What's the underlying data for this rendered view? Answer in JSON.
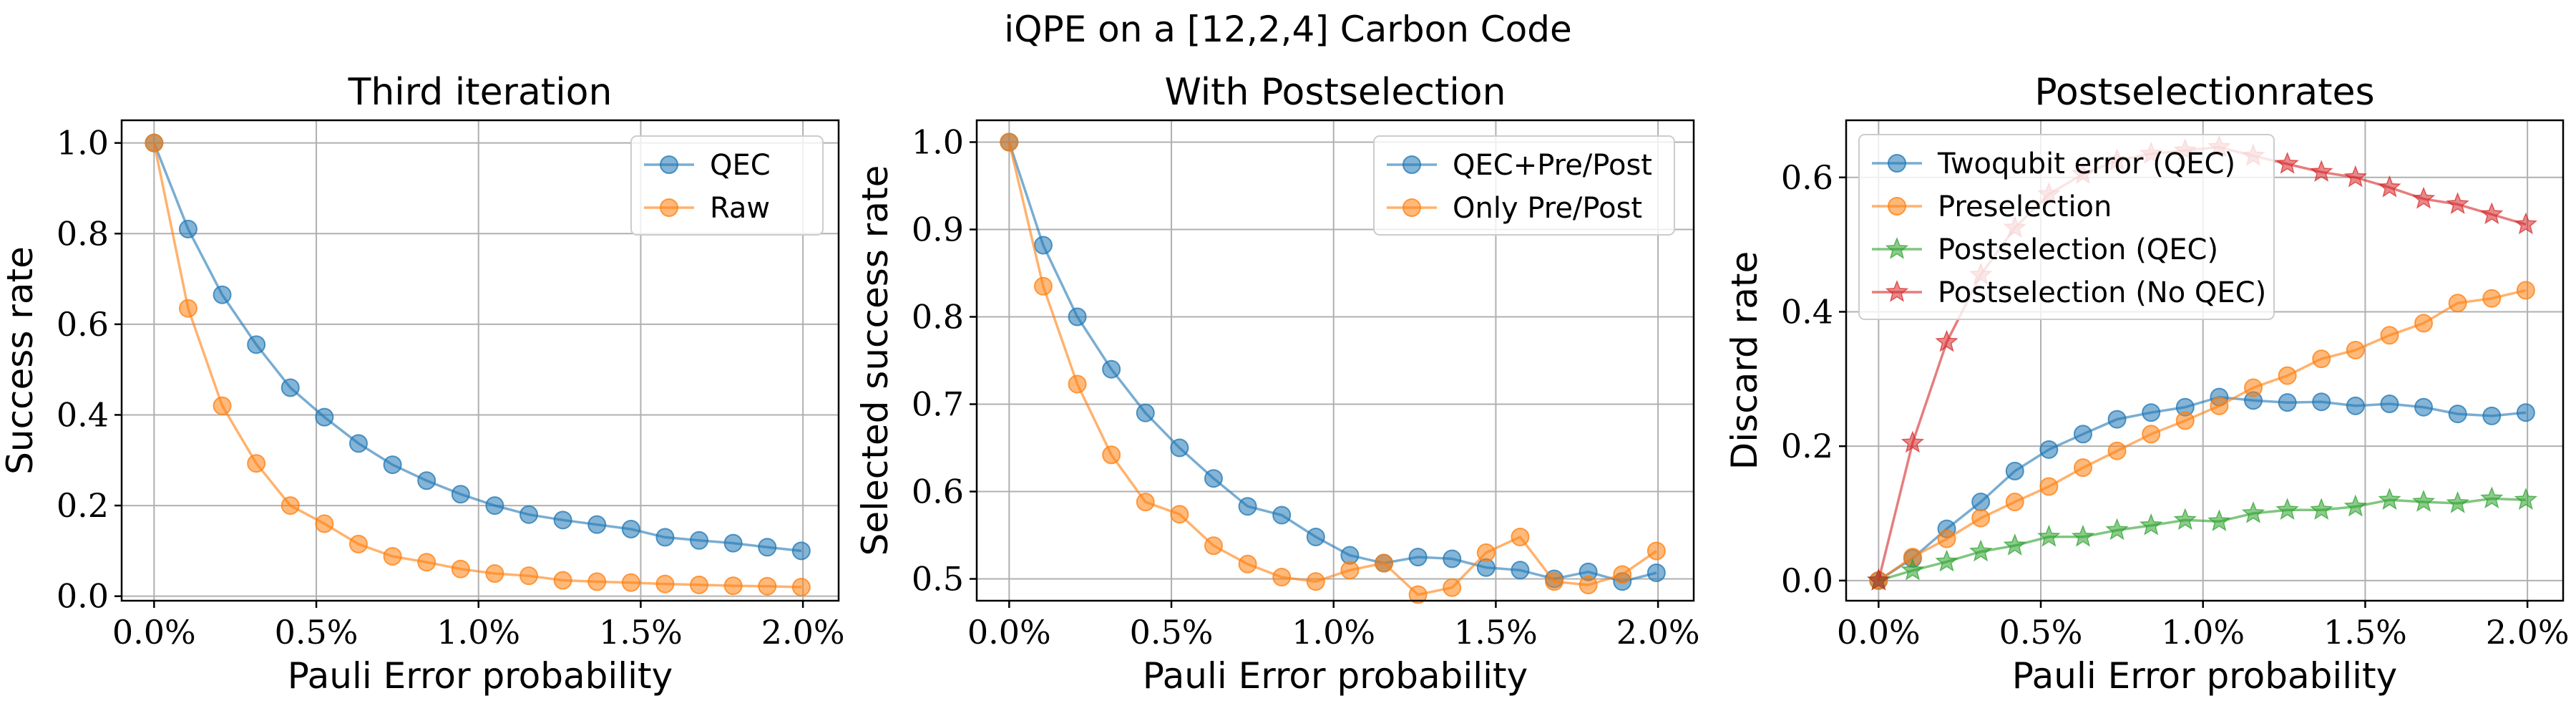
{
  "figure_title": "iQPE on a [12,2,4] Carbon Code",
  "colors": {
    "blue": "#1f77b4",
    "orange": "#ff7f0e",
    "green": "#2ca02c",
    "red": "#d62728"
  },
  "chart_data": [
    {
      "type": "line",
      "title": "Third iteration",
      "xlabel": "Pauli Error probability",
      "ylabel": "Success rate",
      "xlim": [
        -0.001,
        0.0211
      ],
      "ylim": [
        -0.01,
        1.05
      ],
      "xticks": [
        0.0,
        0.005,
        0.01,
        0.015,
        0.02
      ],
      "xtick_labels": [
        "0.0%",
        "0.5%",
        "1.0%",
        "1.5%",
        "2.0%"
      ],
      "yticks": [
        0.0,
        0.2,
        0.4,
        0.6,
        0.8,
        1.0
      ],
      "ytick_labels": [
        "0.0",
        "0.2",
        "0.4",
        "0.6",
        "0.8",
        "1.0"
      ],
      "grid": true,
      "legend_position": "top-right",
      "x": [
        0.0,
        0.00105,
        0.0021,
        0.00315,
        0.0042,
        0.00525,
        0.0063,
        0.00735,
        0.0084,
        0.00945,
        0.0105,
        0.01155,
        0.0126,
        0.01365,
        0.0147,
        0.01575,
        0.0168,
        0.01785,
        0.0189,
        0.01995
      ],
      "series": [
        {
          "name": "QEC",
          "color": "blue",
          "marker": "circle",
          "values": [
            1.0,
            0.81,
            0.665,
            0.555,
            0.46,
            0.395,
            0.337,
            0.29,
            0.255,
            0.225,
            0.2,
            0.18,
            0.168,
            0.158,
            0.148,
            0.13,
            0.123,
            0.117,
            0.108,
            0.1
          ]
        },
        {
          "name": "Raw",
          "color": "orange",
          "marker": "circle",
          "values": [
            1.0,
            0.635,
            0.42,
            0.293,
            0.2,
            0.16,
            0.115,
            0.088,
            0.075,
            0.06,
            0.05,
            0.045,
            0.035,
            0.032,
            0.03,
            0.027,
            0.025,
            0.023,
            0.022,
            0.02
          ]
        }
      ]
    },
    {
      "type": "line",
      "title": "With Postselection",
      "xlabel": "Pauli Error probability",
      "ylabel": "Selected success rate",
      "xlim": [
        -0.001,
        0.0211
      ],
      "ylim": [
        0.475,
        1.025
      ],
      "xticks": [
        0.0,
        0.005,
        0.01,
        0.015,
        0.02
      ],
      "xtick_labels": [
        "0.0%",
        "0.5%",
        "1.0%",
        "1.5%",
        "2.0%"
      ],
      "yticks": [
        0.5,
        0.6,
        0.7,
        0.8,
        0.9,
        1.0
      ],
      "ytick_labels": [
        "0.5",
        "0.6",
        "0.7",
        "0.8",
        "0.9",
        "1.0"
      ],
      "grid": true,
      "legend_position": "top-right",
      "x": [
        0.0,
        0.00105,
        0.0021,
        0.00315,
        0.0042,
        0.00525,
        0.0063,
        0.00735,
        0.0084,
        0.00945,
        0.0105,
        0.01155,
        0.0126,
        0.01365,
        0.0147,
        0.01575,
        0.0168,
        0.01785,
        0.0189,
        0.01995
      ],
      "series": [
        {
          "name": "QEC+Pre/Post",
          "color": "blue",
          "marker": "circle",
          "values": [
            1.0,
            0.882,
            0.8,
            0.74,
            0.69,
            0.65,
            0.615,
            0.583,
            0.573,
            0.548,
            0.527,
            0.518,
            0.525,
            0.523,
            0.513,
            0.51,
            0.5,
            0.508,
            0.497,
            0.507
          ]
        },
        {
          "name": "Only Pre/Post",
          "color": "orange",
          "marker": "circle",
          "values": [
            1.0,
            0.835,
            0.723,
            0.642,
            0.588,
            0.574,
            0.538,
            0.517,
            0.502,
            0.497,
            0.51,
            0.518,
            0.482,
            0.49,
            0.53,
            0.548,
            0.497,
            0.493,
            0.505,
            0.532
          ]
        }
      ]
    },
    {
      "type": "line",
      "title": "Postselectionrates",
      "xlabel": "Pauli Error probability",
      "ylabel": "Discard rate",
      "xlim": [
        -0.001,
        0.0211
      ],
      "ylim": [
        -0.03,
        0.685
      ],
      "xticks": [
        0.0,
        0.005,
        0.01,
        0.015,
        0.02
      ],
      "xtick_labels": [
        "0.0%",
        "0.5%",
        "1.0%",
        "1.5%",
        "2.0%"
      ],
      "yticks": [
        0.0,
        0.2,
        0.4,
        0.6
      ],
      "ytick_labels": [
        "0.0",
        "0.2",
        "0.4",
        "0.6"
      ],
      "grid": true,
      "legend_position": "top-left",
      "x": [
        0.0,
        0.00105,
        0.0021,
        0.00315,
        0.0042,
        0.00525,
        0.0063,
        0.00735,
        0.0084,
        0.00945,
        0.0105,
        0.01155,
        0.0126,
        0.01365,
        0.0147,
        0.01575,
        0.0168,
        0.01785,
        0.0189,
        0.01995
      ],
      "series": [
        {
          "name": "Twoqubit error (QEC)",
          "color": "blue",
          "marker": "circle",
          "values": [
            0.0,
            0.033,
            0.077,
            0.117,
            0.163,
            0.195,
            0.218,
            0.24,
            0.25,
            0.258,
            0.273,
            0.268,
            0.265,
            0.266,
            0.26,
            0.263,
            0.258,
            0.248,
            0.245,
            0.25
          ]
        },
        {
          "name": "Preselection",
          "color": "orange",
          "marker": "circle",
          "values": [
            0.0,
            0.035,
            0.062,
            0.093,
            0.117,
            0.14,
            0.168,
            0.193,
            0.218,
            0.238,
            0.26,
            0.287,
            0.305,
            0.33,
            0.343,
            0.365,
            0.383,
            0.413,
            0.42,
            0.432
          ]
        },
        {
          "name": "Postselection (QEC)",
          "color": "green",
          "marker": "star",
          "values": [
            0.0,
            0.015,
            0.028,
            0.043,
            0.052,
            0.065,
            0.065,
            0.075,
            0.082,
            0.09,
            0.088,
            0.1,
            0.105,
            0.105,
            0.11,
            0.12,
            0.117,
            0.115,
            0.122,
            0.12
          ]
        },
        {
          "name": "Postselection (No QEC)",
          "color": "red",
          "marker": "star",
          "values": [
            0.0,
            0.205,
            0.355,
            0.455,
            0.525,
            0.575,
            0.605,
            0.625,
            0.635,
            0.64,
            0.645,
            0.632,
            0.62,
            0.608,
            0.6,
            0.585,
            0.568,
            0.56,
            0.545,
            0.53
          ]
        }
      ]
    }
  ]
}
